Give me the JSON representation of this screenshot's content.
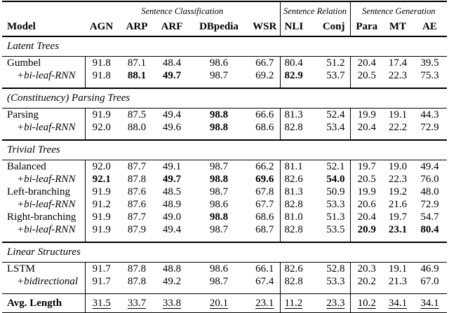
{
  "table": {
    "group_headers": [
      {
        "label": "Sentence Classification",
        "span": 5
      },
      {
        "label": "Sentence Relation",
        "span": 2
      },
      {
        "label": "Sentence Generation",
        "span": 3
      }
    ],
    "columns": [
      "Model",
      "AGN",
      "ARP",
      "ARF",
      "DBpedia",
      "WSR",
      "NLI",
      "Conj",
      "Para",
      "MT",
      "AE"
    ],
    "sections": [
      {
        "label": "Latent Trees",
        "rows": [
          {
            "model": "Gumbel",
            "indent": false,
            "values": [
              "91.8",
              "87.1",
              "48.4",
              "98.6",
              "66.7",
              "80.4",
              "51.2",
              "20.4",
              "17.4",
              "39.5"
            ],
            "bold": []
          },
          {
            "model": "+bi-leaf-RNN",
            "indent": true,
            "values": [
              "91.8",
              "88.1",
              "49.7",
              "98.7",
              "69.2",
              "82.9",
              "53.7",
              "20.5",
              "22.3",
              "75.3"
            ],
            "bold": [
              1,
              2,
              5
            ]
          }
        ]
      },
      {
        "label": "(Constituency) Parsing Trees",
        "rows": [
          {
            "model": "Parsing",
            "indent": false,
            "values": [
              "91.9",
              "87.5",
              "49.4",
              "98.8",
              "66.6",
              "81.3",
              "52.4",
              "19.9",
              "19.1",
              "44.3"
            ],
            "bold": [
              3
            ]
          },
          {
            "model": "+bi-leaf-RNN",
            "indent": true,
            "values": [
              "92.0",
              "88.0",
              "49.6",
              "98.8",
              "68.6",
              "82.8",
              "53.4",
              "20.4",
              "22.2",
              "72.9"
            ],
            "bold": [
              3
            ]
          }
        ]
      },
      {
        "label": "Trivial Trees",
        "rows": [
          {
            "model": "Balanced",
            "indent": false,
            "values": [
              "92.0",
              "87.7",
              "49.1",
              "98.7",
              "66.2",
              "81.1",
              "52.1",
              "19.7",
              "19.0",
              "49.4"
            ],
            "bold": []
          },
          {
            "model": "+bi-leaf-RNN",
            "indent": true,
            "values": [
              "92.1",
              "87.8",
              "49.7",
              "98.8",
              "69.6",
              "82.6",
              "54.0",
              "20.5",
              "22.3",
              "76.0"
            ],
            "bold": [
              0,
              2,
              3,
              4,
              6
            ]
          },
          {
            "model": "Left-branching",
            "indent": false,
            "values": [
              "91.9",
              "87.6",
              "48.5",
              "98.7",
              "67.8",
              "81.3",
              "50.9",
              "19.9",
              "19.2",
              "48.0"
            ],
            "bold": []
          },
          {
            "model": "+bi-leaf-RNN",
            "indent": true,
            "values": [
              "91.2",
              "87.6",
              "48.9",
              "98.6",
              "67.7",
              "82.8",
              "53.3",
              "20.6",
              "21.6",
              "72.9"
            ],
            "bold": []
          },
          {
            "model": "Right-branching",
            "indent": false,
            "values": [
              "91.9",
              "87.7",
              "49.0",
              "98.8",
              "68.6",
              "81.0",
              "51.3",
              "20.4",
              "19.7",
              "54.7"
            ],
            "bold": [
              3
            ]
          },
          {
            "model": "+bi-leaf-RNN",
            "indent": true,
            "values": [
              "91.9",
              "87.9",
              "49.4",
              "98.7",
              "68.7",
              "82.8",
              "53.5",
              "20.9",
              "23.1",
              "80.4"
            ],
            "bold": [
              7,
              8,
              9
            ]
          }
        ]
      },
      {
        "label": "Linear Structures",
        "rows": [
          {
            "model": "LSTM",
            "indent": false,
            "values": [
              "91.7",
              "87.8",
              "48.8",
              "98.6",
              "66.1",
              "82.6",
              "52.8",
              "20.3",
              "19.1",
              "46.9"
            ],
            "bold": []
          },
          {
            "model": "+bidirectional",
            "indent": true,
            "values": [
              "91.7",
              "87.8",
              "49.2",
              "98.7",
              "67.4",
              "82.8",
              "53.3",
              "20.2",
              "21.3",
              "67.0"
            ],
            "bold": []
          }
        ]
      }
    ],
    "footer": {
      "label": "Avg. Length",
      "values": [
        "31.5",
        "33.7",
        "33.8",
        "20.1",
        "23.1",
        "11.2",
        "23.3",
        "10.2",
        "34.1",
        "34.1"
      ]
    }
  }
}
